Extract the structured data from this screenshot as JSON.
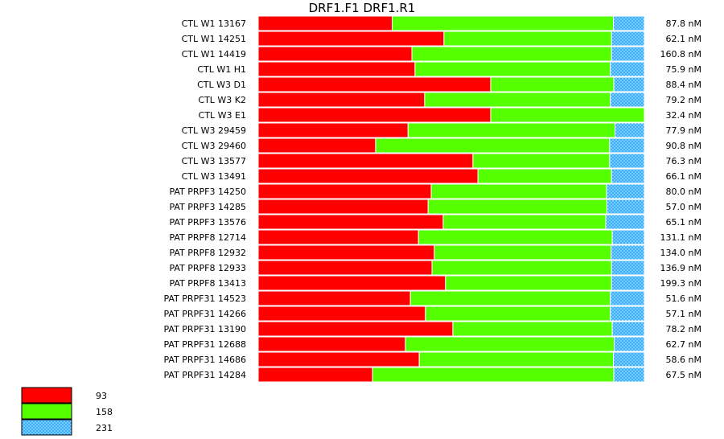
{
  "chart_data": {
    "type": "bar",
    "stacking": "percent",
    "title": "DRF1.F1  DRF1.R1",
    "legend_position": "bottom-left",
    "legend": [
      {
        "label": "93",
        "color": "#ff0000",
        "pattern": "solid"
      },
      {
        "label": "158",
        "color": "#55ff00",
        "pattern": "solid"
      },
      {
        "label": "231",
        "color": "#2aa8ff",
        "pattern": "crosshatch"
      }
    ],
    "rows": [
      {
        "label": "CTL W1 13167",
        "values": [
          34.7,
          57.3,
          8.0
        ],
        "concentration": "87.8 nM"
      },
      {
        "label": "CTL W1 14251",
        "values": [
          48.1,
          43.4,
          8.5
        ],
        "concentration": "62.1 nM"
      },
      {
        "label": "CTL W1 14419",
        "values": [
          39.8,
          51.7,
          8.5
        ],
        "concentration": "160.8 nM"
      },
      {
        "label": "CTL W1 H1",
        "values": [
          40.6,
          50.6,
          8.8
        ],
        "concentration": "75.9 nM"
      },
      {
        "label": "CTL W3 D1",
        "values": [
          60.2,
          31.9,
          7.9
        ],
        "concentration": "88.4 nM"
      },
      {
        "label": "CTL W3 K2",
        "values": [
          43.1,
          48.1,
          8.8
        ],
        "concentration": "79.2 nM"
      },
      {
        "label": "CTL W3 E1",
        "values": [
          60.2,
          39.8,
          0.0
        ],
        "concentration": "32.4 nM"
      },
      {
        "label": "CTL W3 29459",
        "values": [
          38.8,
          53.6,
          7.6
        ],
        "concentration": "77.9 nM"
      },
      {
        "label": "CTL W3 29460",
        "values": [
          30.4,
          60.6,
          9.0
        ],
        "concentration": "90.8 nM"
      },
      {
        "label": "CTL W3 13577",
        "values": [
          55.6,
          35.4,
          9.0
        ],
        "concentration": "76.3 nM"
      },
      {
        "label": "CTL W3 13491",
        "values": [
          56.9,
          34.6,
          8.5
        ],
        "concentration": "66.1 nM"
      },
      {
        "label": "PAT PRPF3 14250",
        "values": [
          44.8,
          45.4,
          9.8
        ],
        "concentration": "80.0 nM"
      },
      {
        "label": "PAT PRPF3 14285",
        "values": [
          44.0,
          46.3,
          9.7
        ],
        "concentration": "57.0 nM"
      },
      {
        "label": "PAT PRPF3 13576",
        "values": [
          47.9,
          42.1,
          10.0
        ],
        "concentration": "65.1 nM"
      },
      {
        "label": "PAT PRPF8 12714",
        "values": [
          41.5,
          50.2,
          8.3
        ],
        "concentration": "131.1 nM"
      },
      {
        "label": "PAT PRPF8 12932",
        "values": [
          45.6,
          45.8,
          8.6
        ],
        "concentration": "134.0 nM"
      },
      {
        "label": "PAT PRPF8 12933",
        "values": [
          45.0,
          46.5,
          8.5
        ],
        "concentration": "136.9 nM"
      },
      {
        "label": "PAT PRPF8 13413",
        "values": [
          48.5,
          43.0,
          8.5
        ],
        "concentration": "199.3 nM"
      },
      {
        "label": "PAT PRPF31 14523",
        "values": [
          39.4,
          51.8,
          8.8
        ],
        "concentration": "51.6 nM"
      },
      {
        "label": "PAT PRPF31 14266",
        "values": [
          43.3,
          47.9,
          8.8
        ],
        "concentration": "57.1 nM"
      },
      {
        "label": "PAT PRPF31 13190",
        "values": [
          50.4,
          41.3,
          8.3
        ],
        "concentration": "78.2 nM"
      },
      {
        "label": "PAT PRPF31 12688",
        "values": [
          38.1,
          54.1,
          7.8
        ],
        "concentration": "62.7 nM"
      },
      {
        "label": "PAT PRPF31 14686",
        "values": [
          41.7,
          50.3,
          8.0
        ],
        "concentration": "58.6 nM"
      },
      {
        "label": "PAT PRPF31 14284",
        "values": [
          29.6,
          62.5,
          7.9
        ],
        "concentration": "67.5 nM"
      }
    ]
  }
}
